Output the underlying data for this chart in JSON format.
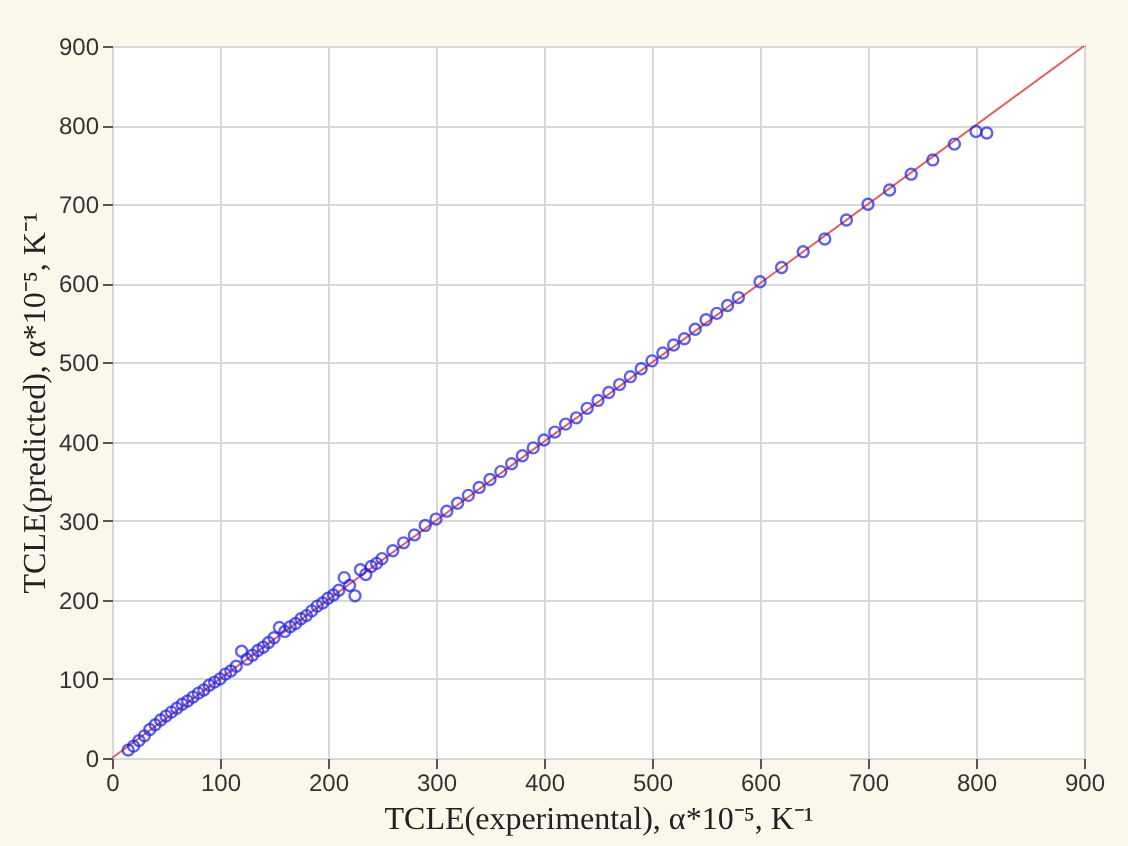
{
  "chart_data": {
    "type": "scatter",
    "xlabel": "TCLE(experimental), α*10⁻⁵, K⁻¹",
    "ylabel": "TCLE(predicted), α*10⁻⁵, K⁻¹",
    "xlim": [
      0,
      900
    ],
    "ylim": [
      0,
      900
    ],
    "xticks": [
      0,
      100,
      200,
      300,
      400,
      500,
      600,
      700,
      800,
      900
    ],
    "yticks": [
      0,
      100,
      200,
      300,
      400,
      500,
      600,
      700,
      800,
      900
    ],
    "grid": true,
    "series": [
      {
        "type": "line",
        "marker": "none",
        "color": "#e06060",
        "x": [
          0,
          900
        ],
        "values": [
          0,
          900
        ]
      },
      {
        "type": "scatter",
        "marker": "circle",
        "color": "#1f1fe0",
        "x": [
          15,
          20,
          25,
          30,
          35,
          40,
          45,
          50,
          55,
          60,
          65,
          70,
          75,
          80,
          85,
          90,
          95,
          100,
          105,
          110,
          115,
          120,
          125,
          130,
          135,
          140,
          145,
          150,
          155,
          160,
          165,
          170,
          175,
          180,
          185,
          190,
          195,
          200,
          205,
          210,
          215,
          220,
          225,
          230,
          235,
          240,
          245,
          250,
          260,
          270,
          280,
          290,
          300,
          310,
          320,
          330,
          340,
          350,
          360,
          370,
          380,
          390,
          400,
          410,
          420,
          430,
          440,
          450,
          460,
          470,
          480,
          490,
          500,
          510,
          520,
          530,
          540,
          550,
          560,
          570,
          580,
          600,
          620,
          640,
          660,
          680,
          700,
          720,
          740,
          760,
          780,
          800,
          810
        ],
        "values": [
          10,
          15,
          22,
          28,
          36,
          42,
          48,
          53,
          58,
          63,
          68,
          72,
          77,
          82,
          86,
          92,
          96,
          100,
          106,
          110,
          116,
          135,
          125,
          130,
          136,
          140,
          146,
          152,
          165,
          160,
          166,
          170,
          176,
          180,
          186,
          192,
          196,
          202,
          206,
          212,
          228,
          218,
          205,
          238,
          232,
          242,
          246,
          252,
          262,
          272,
          282,
          294,
          302,
          312,
          322,
          332,
          342,
          352,
          362,
          372,
          382,
          392,
          402,
          412,
          422,
          430,
          442,
          452,
          462,
          472,
          482,
          492,
          502,
          512,
          522,
          530,
          542,
          554,
          562,
          572,
          582,
          602,
          620,
          640,
          656,
          680,
          700,
          718,
          738,
          756,
          776,
          792,
          790
        ]
      }
    ]
  }
}
